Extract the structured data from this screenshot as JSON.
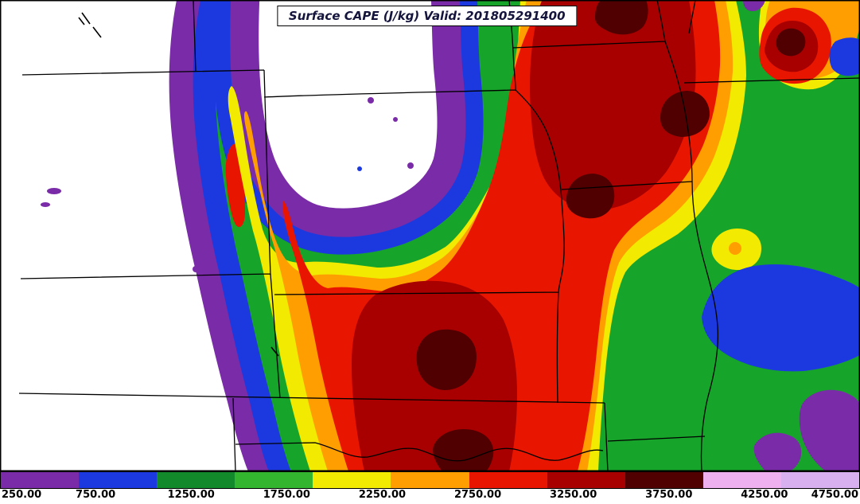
{
  "title": "Surface CAPE (J/kg) Valid: 201805291400",
  "colors": {
    "background": "#ffffff",
    "border": "#000000",
    "purple": "#7A2BA8",
    "blue": "#1C39E0",
    "green": "#17A42B",
    "dark_green": "#128A2C",
    "light_green": "#33B52F",
    "yellow": "#F2EA00",
    "orange": "#FF9E00",
    "red": "#E81600",
    "dark_red": "#A80000",
    "maroon": "#500000",
    "pale_pink": "#EFB0EF",
    "pale_violet": "#D8B0F0"
  },
  "colorbar": {
    "labels": [
      "250.00",
      "750.00",
      "1250.00",
      "1750.00",
      "2250.00",
      "2750.00",
      "3250.00",
      "3750.00",
      "4250.00",
      "4750.00"
    ],
    "segment_colors": [
      "#7A2BA8",
      "#1C39E0",
      "#128A2C",
      "#33B52F",
      "#F2EA00",
      "#FF9E00",
      "#E81600",
      "#A80000",
      "#500000",
      "#EFB0EF",
      "#D8B0F0"
    ]
  }
}
